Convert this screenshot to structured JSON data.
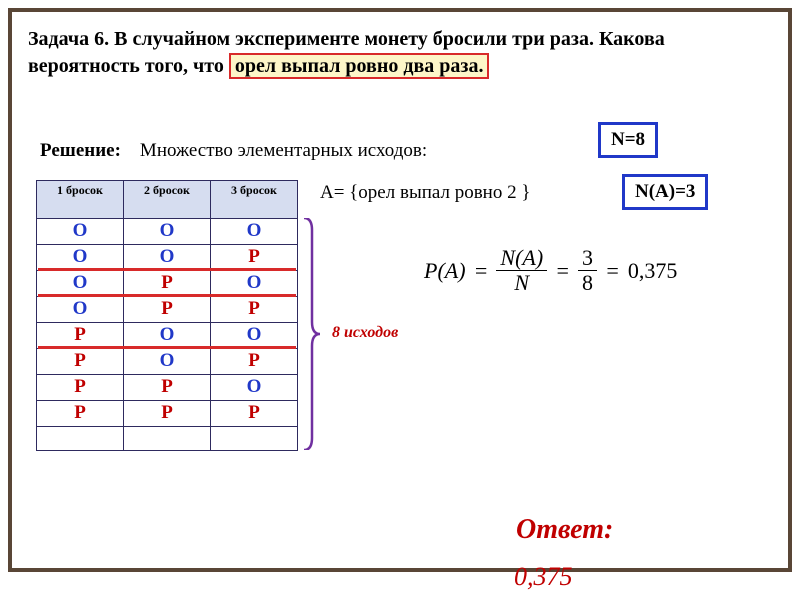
{
  "problem": {
    "prefix": "Задача 6. В случайном эксперименте монету бросили три раза. Какова вероятность того, что ",
    "highlight": "орел выпал ровно два раза."
  },
  "solution_label": "Решение:",
  "solution_text": "Множество элементарных исходов:",
  "n_total": "N=8",
  "event_text": "A= {орел выпал ровно 2 }",
  "n_a": "N(A)=3",
  "table": {
    "headers": [
      "1 бросок",
      "2 бросок",
      "3 бросок"
    ],
    "rows": [
      [
        "О",
        "О",
        "О"
      ],
      [
        "О",
        "О",
        "Р"
      ],
      [
        "О",
        "Р",
        "О"
      ],
      [
        "О",
        "Р",
        "Р"
      ],
      [
        "Р",
        "О",
        "О"
      ],
      [
        "Р",
        "О",
        "Р"
      ],
      [
        "Р",
        "Р",
        "О"
      ],
      [
        "Р",
        "Р",
        "Р"
      ]
    ],
    "colors": {
      "О": "#2038c8",
      "Р": "#c00000"
    },
    "underline_rows": [
      1,
      2,
      4
    ],
    "underline_color": "#d82a2a"
  },
  "outcomes_label": "8 исходов",
  "bracket_color": "#7030a0",
  "formula": {
    "lhs": "P(A)",
    "frac1_num": "N(A)",
    "frac1_den": "N",
    "frac2_num": "3",
    "frac2_den": "8",
    "result": "0,375"
  },
  "answer_label": "Ответ:",
  "answer_value": "0,375",
  "frame_border_color": "#594636",
  "box_border_color": "#2038c8",
  "highlight_bg": "#fdf6c8",
  "answer_color": "#c00000"
}
